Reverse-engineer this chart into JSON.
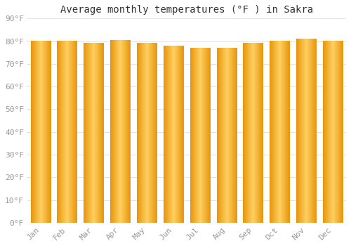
{
  "months": [
    "Jan",
    "Feb",
    "Mar",
    "Apr",
    "May",
    "Jun",
    "Jul",
    "Aug",
    "Sep",
    "Oct",
    "Nov",
    "Dec"
  ],
  "values": [
    80,
    80,
    79,
    80.5,
    79,
    78,
    77,
    77,
    79,
    80,
    81,
    80
  ],
  "title": "Average monthly temperatures (°F ) in Sakra",
  "ylim": [
    0,
    90
  ],
  "yticks": [
    0,
    10,
    20,
    30,
    40,
    50,
    60,
    70,
    80,
    90
  ],
  "ytick_labels": [
    "0°F",
    "10°F",
    "20°F",
    "30°F",
    "40°F",
    "50°F",
    "60°F",
    "70°F",
    "80°F",
    "90°F"
  ],
  "bar_color_left": "#E8940A",
  "bar_color_center": "#FFD060",
  "bar_color_right": "#E8940A",
  "background_color": "#ffffff",
  "grid_color": "#dddddd",
  "title_fontsize": 10,
  "tick_fontsize": 8,
  "tick_color": "#999999",
  "title_color": "#333333",
  "figsize": [
    5.0,
    3.5
  ],
  "dpi": 100,
  "bar_width": 0.75
}
